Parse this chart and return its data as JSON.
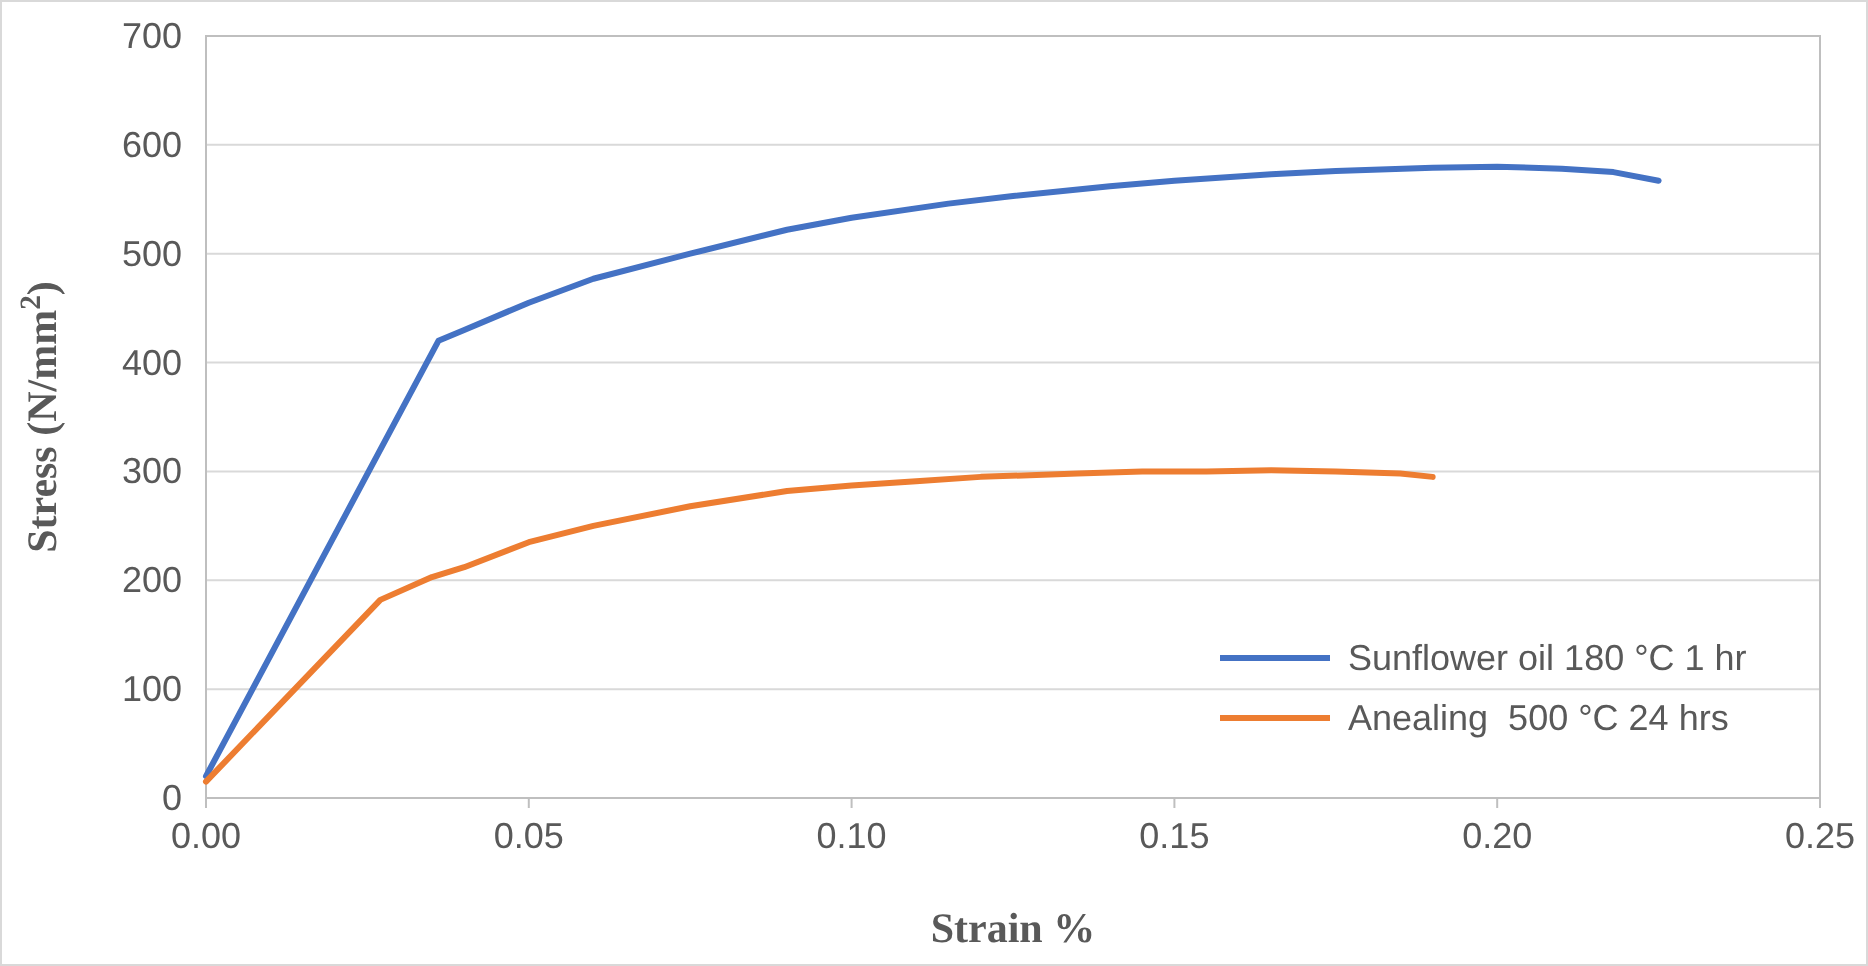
{
  "chart_data": {
    "type": "line",
    "xlabel": "Strain %",
    "ylabel": "Stress (N/mm$^{2}$)",
    "xlim": [
      0,
      0.25
    ],
    "xticks": [
      {
        "value": 0,
        "label": "0.00"
      },
      {
        "value": 0.05,
        "label": "0.05"
      },
      {
        "value": 0.1,
        "label": "0.10"
      },
      {
        "value": 0.15,
        "label": "0.15"
      },
      {
        "value": 0.2,
        "label": "0.20"
      },
      {
        "value": 0.25,
        "label": "0.25"
      }
    ],
    "ylim": [
      0,
      700
    ],
    "yticks": [
      0,
      100,
      200,
      300,
      400,
      500,
      600,
      700
    ],
    "grid": "y",
    "legend": "bottom right",
    "marker": "none",
    "line_style": "solid",
    "series": [
      {
        "name": "Sunflower oil 180 °C 1 hr",
        "color": "#4472c4",
        "x": [
          0,
          0.036,
          0.04,
          0.05,
          0.06,
          0.075,
          0.09,
          0.1,
          0.115,
          0.125,
          0.14,
          0.15,
          0.165,
          0.175,
          0.19,
          0.2,
          0.21,
          0.218,
          0.225
        ],
        "values": [
          20,
          420,
          430,
          455,
          477,
          500,
          522,
          533,
          546,
          553,
          562,
          567,
          573,
          576,
          579,
          580,
          578,
          575,
          567
        ]
      },
      {
        "name": "Anealing  500 °C 24 hrs",
        "color": "#ed7d31",
        "x": [
          0,
          0.027,
          0.035,
          0.04,
          0.05,
          0.06,
          0.075,
          0.09,
          0.1,
          0.11,
          0.12,
          0.135,
          0.145,
          0.155,
          0.165,
          0.175,
          0.185,
          0.19
        ],
        "values": [
          15,
          182,
          203,
          212,
          235,
          250,
          268,
          282,
          287,
          291,
          295,
          298,
          300,
          300,
          301,
          300,
          298,
          295
        ]
      }
    ]
  }
}
